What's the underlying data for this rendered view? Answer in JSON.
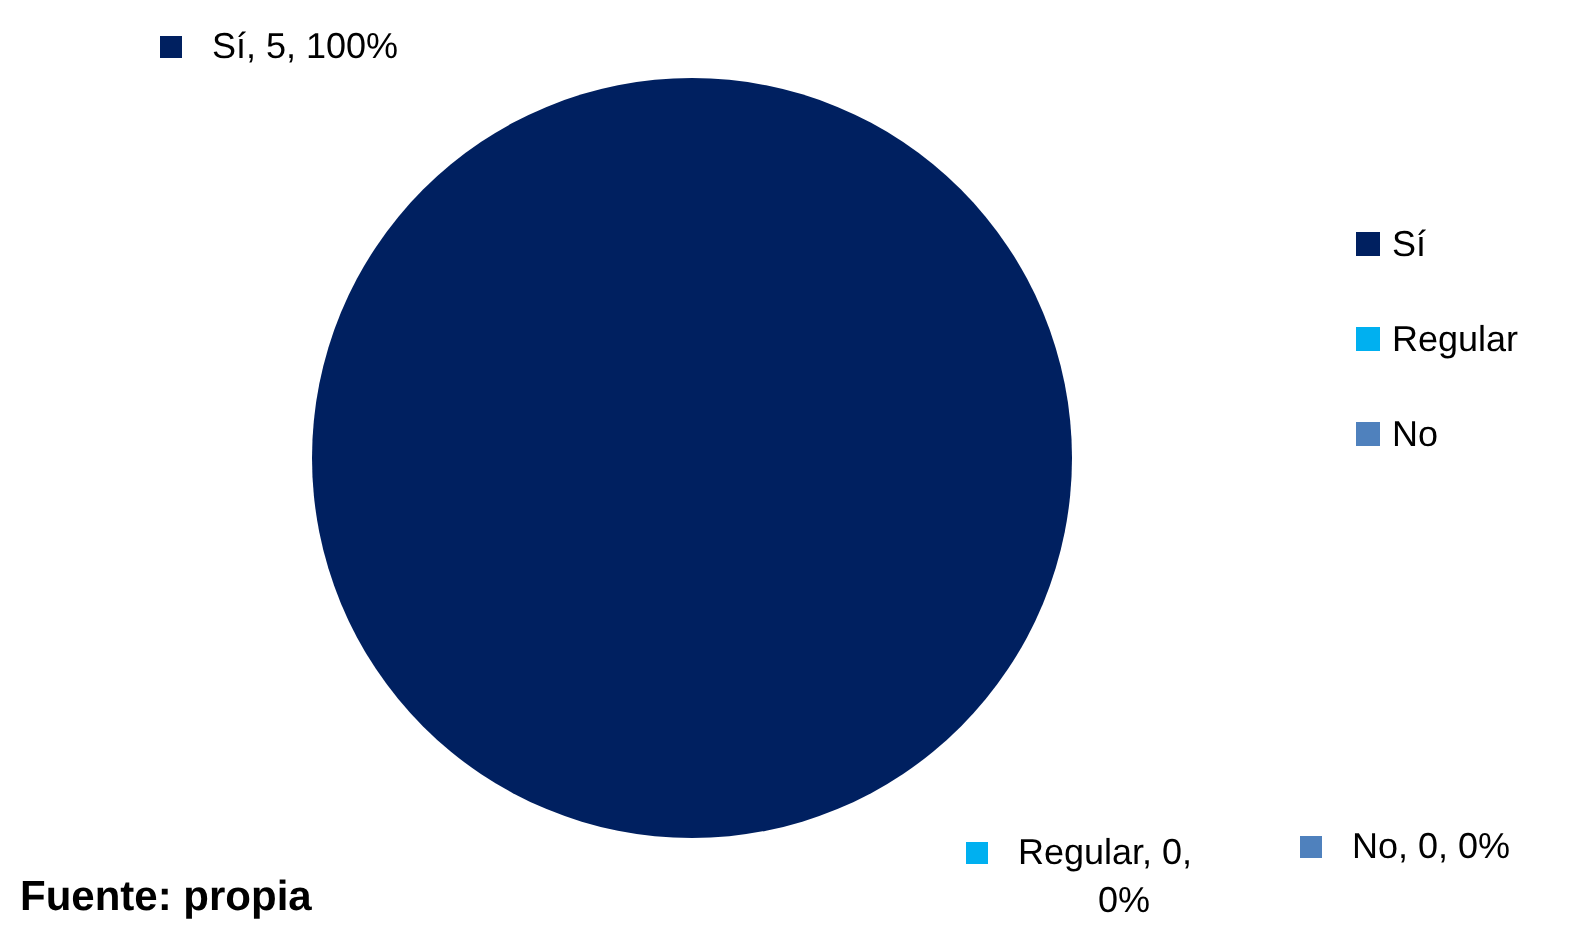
{
  "chart_data": {
    "type": "pie",
    "categories": [
      "Sí",
      "Regular",
      "No"
    ],
    "values": [
      5,
      0,
      0
    ],
    "colors": [
      "#002060",
      "#00b0f0",
      "#4f81bd"
    ],
    "value_labels": [
      "Sí, 5, 100%",
      "Regular, 0, 0%",
      "No, 0, 0%"
    ],
    "legend": "right",
    "annotations": [
      "Fuente: propia"
    ]
  }
}
